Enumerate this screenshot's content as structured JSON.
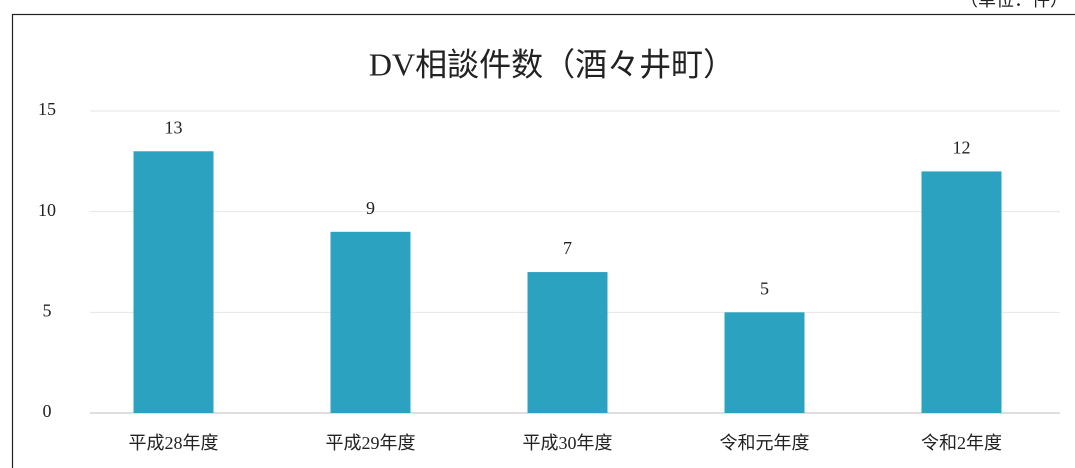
{
  "unit_label": "（単位：件）",
  "chart_data": {
    "type": "bar",
    "title": "DV相談件数（酒々井町）",
    "categories": [
      "平成28年度",
      "平成29年度",
      "平成30年度",
      "令和元年度",
      "令和2年度"
    ],
    "values": [
      13,
      9,
      7,
      5,
      12
    ],
    "color": "#2ba3c0",
    "ylim": [
      0,
      15
    ],
    "yticks": [
      0,
      5,
      10,
      15
    ],
    "grid": true
  }
}
